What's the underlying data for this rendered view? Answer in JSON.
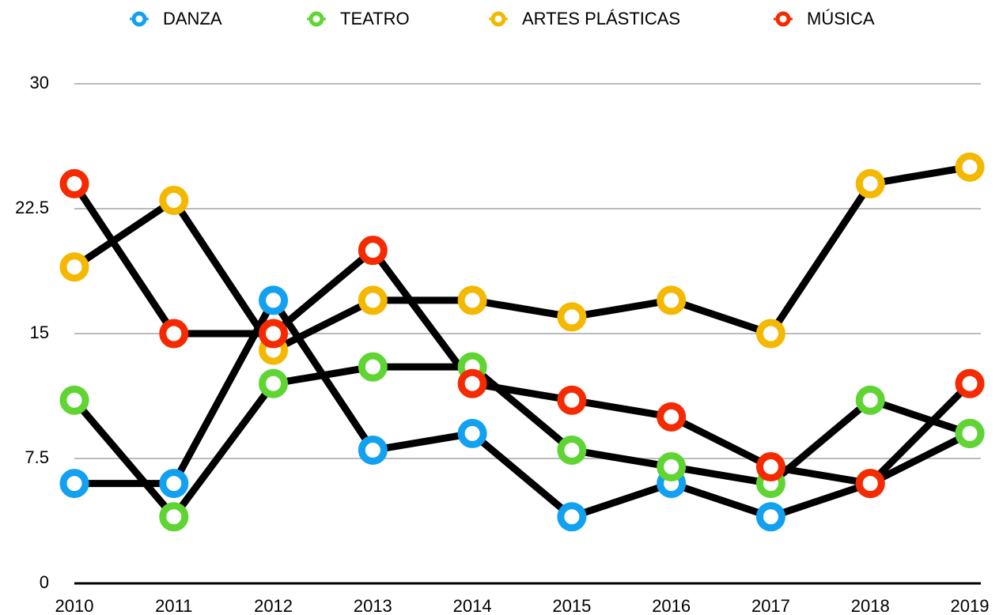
{
  "chart_data": {
    "type": "line",
    "categories": [
      "2010",
      "2011",
      "2012",
      "2013",
      "2014",
      "2015",
      "2016",
      "2017",
      "2018",
      "2019"
    ],
    "series": [
      {
        "name": "DANZA",
        "color": "#12a1f0",
        "values": [
          6,
          6,
          17,
          8,
          9,
          4,
          6,
          4,
          6,
          9
        ]
      },
      {
        "name": "TEATRO",
        "color": "#5fd433",
        "values": [
          11,
          4,
          12,
          13,
          13,
          8,
          7,
          6,
          11,
          9
        ]
      },
      {
        "name": "ARTES PLÁSTICAS",
        "color": "#f5b800",
        "values": [
          19,
          23,
          14,
          17,
          17,
          16,
          17,
          15,
          24,
          25
        ]
      },
      {
        "name": "MÚSICA",
        "color": "#f52a00",
        "values": [
          24,
          15,
          15,
          20,
          12,
          11,
          10,
          7,
          6,
          12
        ]
      }
    ],
    "line_color": "#000000",
    "ylim": [
      0,
      30
    ],
    "yticks": [
      0,
      7.5,
      15,
      22.5,
      30
    ],
    "grid": true,
    "legend": "top"
  }
}
